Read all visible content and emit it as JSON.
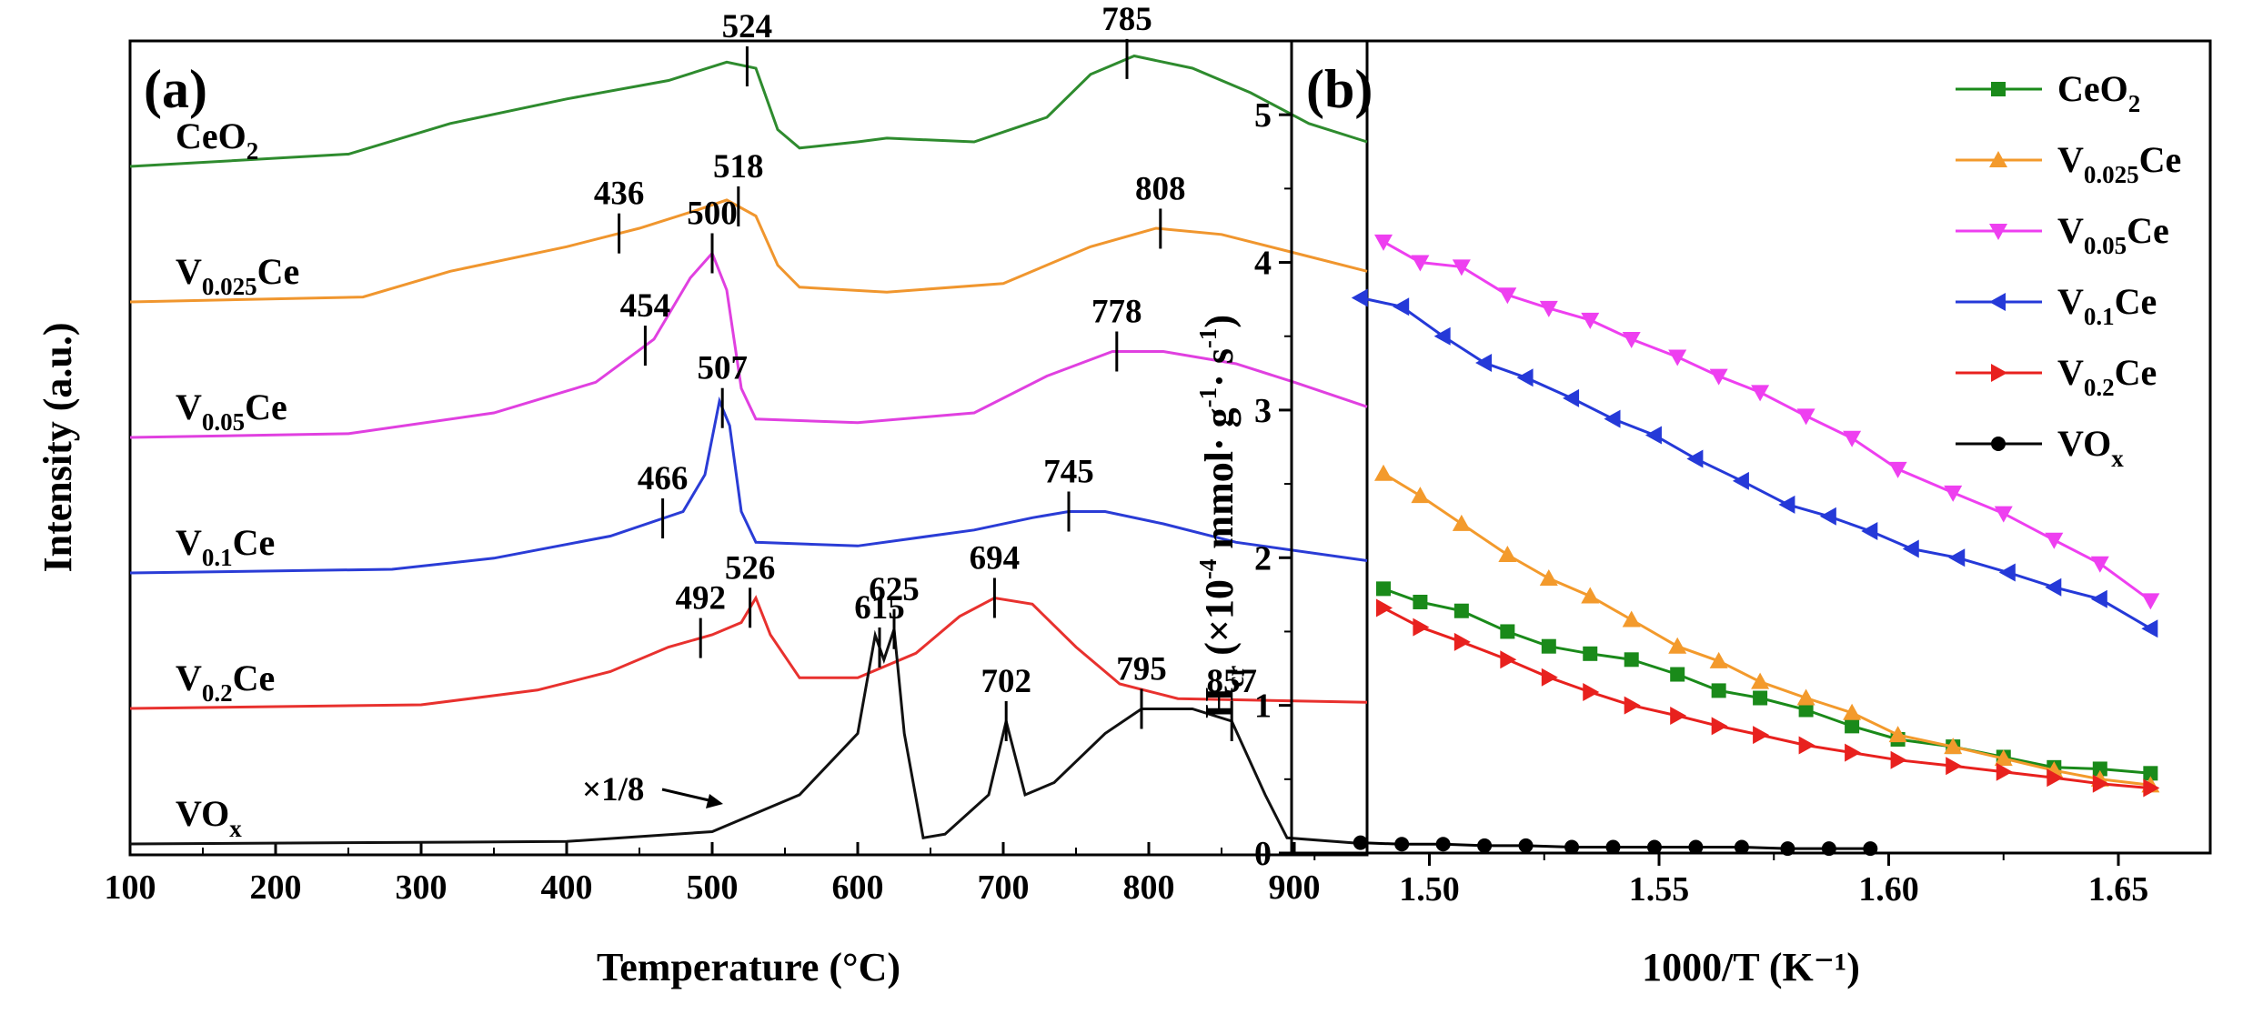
{
  "chart_data": [
    {
      "type": "line",
      "panel_label": "(a)",
      "xlabel": "Temperature (°C)",
      "ylabel": "Intensity (a.u.)",
      "xlim": [
        100,
        950
      ],
      "xticks": [
        "100",
        "200",
        "300",
        "400",
        "500",
        "600",
        "700",
        "800",
        "900"
      ],
      "annotation": "×1/8",
      "series": [
        {
          "name": "CeO2",
          "label_main": "CeO",
          "label_sub": "2",
          "label_after": "",
          "color": "#2e8b2e",
          "offset": 10,
          "scale": 1,
          "points": [
            [
              100,
              0
            ],
            [
              250,
              1
            ],
            [
              320,
              3.5
            ],
            [
              400,
              5.5
            ],
            [
              470,
              7
            ],
            [
              510,
              8.5
            ],
            [
              530,
              8
            ],
            [
              545,
              3
            ],
            [
              560,
              1.5
            ],
            [
              600,
              2
            ],
            [
              620,
              2.3
            ],
            [
              680,
              2
            ],
            [
              730,
              4
            ],
            [
              760,
              7.5
            ],
            [
              790,
              9
            ],
            [
              830,
              8
            ],
            [
              870,
              6
            ],
            [
              910,
              3.5
            ],
            [
              950,
              2
            ]
          ],
          "peaks": [
            "524",
            "785"
          ],
          "peak_x": [
            524,
            785
          ]
        },
        {
          "name": "V0.025Ce",
          "label_main": "V",
          "label_sub": "0.025",
          "label_after": "Ce",
          "color": "#f0962e",
          "offset": 8,
          "scale": 1,
          "points": [
            [
              100,
              0
            ],
            [
              260,
              0.4
            ],
            [
              320,
              2.5
            ],
            [
              400,
              4.5
            ],
            [
              450,
              6
            ],
            [
              490,
              7.5
            ],
            [
              510,
              8.3
            ],
            [
              530,
              7
            ],
            [
              545,
              3
            ],
            [
              560,
              1.2
            ],
            [
              620,
              0.8
            ],
            [
              700,
              1.5
            ],
            [
              760,
              4.5
            ],
            [
              805,
              6
            ],
            [
              850,
              5.5
            ],
            [
              900,
              4
            ],
            [
              950,
              2.5
            ]
          ],
          "peaks": [
            "436",
            "518",
            "808"
          ],
          "peak_x": [
            436,
            518,
            808
          ]
        },
        {
          "name": "V0.05Ce",
          "label_main": "V",
          "label_sub": "0.05",
          "label_after": "Ce",
          "color": "#e040e0",
          "offset": 6,
          "scale": 1,
          "points": [
            [
              100,
              0
            ],
            [
              250,
              0.3
            ],
            [
              350,
              2
            ],
            [
              420,
              4.5
            ],
            [
              460,
              8
            ],
            [
              485,
              13
            ],
            [
              500,
              15
            ],
            [
              510,
              12
            ],
            [
              520,
              4
            ],
            [
              530,
              1.5
            ],
            [
              600,
              1.2
            ],
            [
              680,
              2
            ],
            [
              730,
              5
            ],
            [
              775,
              7
            ],
            [
              810,
              7
            ],
            [
              860,
              6
            ],
            [
              900,
              4.5
            ],
            [
              950,
              2.5
            ]
          ],
          "peaks": [
            "454",
            "500",
            "778"
          ],
          "peak_x": [
            454,
            500,
            778
          ]
        },
        {
          "name": "V0.1Ce",
          "label_main": "V",
          "label_sub": "0.1",
          "label_after": "Ce",
          "color": "#2a3cd6",
          "offset": 4,
          "scale": 1,
          "points": [
            [
              100,
              0
            ],
            [
              280,
              0.3
            ],
            [
              350,
              1.2
            ],
            [
              430,
              3
            ],
            [
              480,
              5
            ],
            [
              495,
              8
            ],
            [
              505,
              14
            ],
            [
              512,
              12
            ],
            [
              520,
              5
            ],
            [
              530,
              2.5
            ],
            [
              600,
              2.2
            ],
            [
              680,
              3.5
            ],
            [
              720,
              4.5
            ],
            [
              745,
              5
            ],
            [
              770,
              5
            ],
            [
              810,
              4
            ],
            [
              860,
              2.5
            ],
            [
              950,
              1
            ]
          ],
          "peaks": [
            "466",
            "507",
            "745"
          ],
          "peak_x": [
            466,
            507,
            745
          ]
        },
        {
          "name": "V0.2Ce",
          "label_main": "V",
          "label_sub": "0.2",
          "label_after": "Ce",
          "color": "#e8312e",
          "offset": 2,
          "scale": 1,
          "points": [
            [
              100,
              0
            ],
            [
              300,
              0.3
            ],
            [
              380,
              1.5
            ],
            [
              430,
              3
            ],
            [
              470,
              5
            ],
            [
              500,
              6
            ],
            [
              520,
              7
            ],
            [
              530,
              9
            ],
            [
              540,
              6
            ],
            [
              560,
              2.5
            ],
            [
              600,
              2.5
            ],
            [
              640,
              4.5
            ],
            [
              670,
              7.5
            ],
            [
              694,
              9
            ],
            [
              720,
              8.5
            ],
            [
              750,
              5
            ],
            [
              780,
              2
            ],
            [
              820,
              0.8
            ],
            [
              950,
              0.5
            ]
          ],
          "peaks": [
            "492",
            "526",
            "694"
          ],
          "peak_x": [
            492,
            526,
            694
          ]
        },
        {
          "name": "VOx",
          "label_main": "VO",
          "label_sub": "x",
          "label_after": "",
          "color": "#111111",
          "offset": 0,
          "scale": 1,
          "points": [
            [
              100,
              0
            ],
            [
              400,
              0.2
            ],
            [
              500,
              1
            ],
            [
              560,
              4
            ],
            [
              600,
              9
            ],
            [
              612,
              17
            ],
            [
              618,
              15
            ],
            [
              625,
              17.5
            ],
            [
              632,
              9
            ],
            [
              645,
              0.5
            ],
            [
              660,
              0.8
            ],
            [
              690,
              4
            ],
            [
              702,
              10
            ],
            [
              715,
              4
            ],
            [
              735,
              5
            ],
            [
              770,
              9
            ],
            [
              795,
              11
            ],
            [
              830,
              11
            ],
            [
              857,
              10
            ],
            [
              880,
              4
            ],
            [
              895,
              0.5
            ],
            [
              950,
              0
            ]
          ],
          "peaks": [
            "615",
            "625",
            "702",
            "795",
            "857"
          ],
          "peak_x": [
            615,
            625,
            702,
            795,
            857
          ]
        }
      ]
    },
    {
      "type": "line",
      "panel_label": "(b)",
      "xlabel": "1000/T (K⁻¹)",
      "ylabel_main": "H",
      "ylabel_sub": "cr",
      "ylabel_rest": "(×10",
      "ylabel_sup1": "-4",
      "ylabel_mid": "mmol· g",
      "ylabel_sup2": "-1",
      "ylabel_mid2": "· s",
      "ylabel_sup3": "-1",
      "ylabel_end": ")",
      "xlim": [
        1.47,
        1.67
      ],
      "ylim": [
        0,
        5.5
      ],
      "xticks": [
        "1.50",
        "1.55",
        "1.60",
        "1.65"
      ],
      "yticks": [
        "0",
        "1",
        "2",
        "3",
        "4",
        "5"
      ],
      "legend_position": "top-right",
      "series": [
        {
          "name": "CeO2",
          "label_main": "CeO",
          "label_sub": "2",
          "label_after": "",
          "color": "#1a8a1a",
          "marker": "square",
          "x": [
            1.49,
            1.498,
            1.507,
            1.517,
            1.526,
            1.535,
            1.544,
            1.554,
            1.563,
            1.572,
            1.582,
            1.592,
            1.602,
            1.614,
            1.625,
            1.636,
            1.646,
            1.657
          ],
          "y": [
            1.79,
            1.7,
            1.64,
            1.5,
            1.4,
            1.35,
            1.31,
            1.21,
            1.1,
            1.05,
            0.97,
            0.86,
            0.77,
            0.72,
            0.65,
            0.58,
            0.57,
            0.54
          ]
        },
        {
          "name": "V0.025Ce",
          "label_main": "V",
          "label_sub": "0.025",
          "label_after": "Ce",
          "color": "#f39a2c",
          "marker": "triangle-up",
          "x": [
            1.49,
            1.498,
            1.507,
            1.517,
            1.526,
            1.535,
            1.544,
            1.554,
            1.563,
            1.572,
            1.582,
            1.592,
            1.602,
            1.614,
            1.625,
            1.636,
            1.646,
            1.657
          ],
          "y": [
            2.57,
            2.42,
            2.23,
            2.02,
            1.86,
            1.74,
            1.58,
            1.4,
            1.3,
            1.16,
            1.05,
            0.95,
            0.8,
            0.72,
            0.64,
            0.56,
            0.5,
            0.46
          ]
        },
        {
          "name": "V0.05Ce",
          "label_main": "V",
          "label_sub": "0.05",
          "label_after": "Ce",
          "color": "#ee3ff0",
          "marker": "triangle-down",
          "x": [
            1.49,
            1.498,
            1.507,
            1.517,
            1.526,
            1.535,
            1.544,
            1.554,
            1.563,
            1.572,
            1.582,
            1.592,
            1.602,
            1.614,
            1.625,
            1.636,
            1.646,
            1.657
          ],
          "y": [
            4.14,
            4.0,
            3.97,
            3.78,
            3.69,
            3.61,
            3.48,
            3.36,
            3.23,
            3.12,
            2.96,
            2.81,
            2.6,
            2.44,
            2.3,
            2.12,
            1.96,
            1.71
          ]
        },
        {
          "name": "V0.1Ce",
          "label_main": "V",
          "label_sub": "0.1",
          "label_after": "Ce",
          "color": "#2539d8",
          "marker": "triangle-left",
          "x": [
            1.485,
            1.494,
            1.503,
            1.512,
            1.521,
            1.531,
            1.54,
            1.549,
            1.558,
            1.568,
            1.578,
            1.587,
            1.596,
            1.605,
            1.615,
            1.626,
            1.636,
            1.646,
            1.657
          ],
          "y": [
            3.76,
            3.7,
            3.5,
            3.32,
            3.22,
            3.08,
            2.94,
            2.83,
            2.67,
            2.52,
            2.36,
            2.28,
            2.18,
            2.06,
            2.0,
            1.9,
            1.8,
            1.72,
            1.52
          ]
        },
        {
          "name": "V0.2Ce",
          "label_main": "V",
          "label_sub": "0.2",
          "label_after": "Ce",
          "color": "#e8211e",
          "marker": "triangle-right",
          "x": [
            1.49,
            1.498,
            1.507,
            1.517,
            1.526,
            1.535,
            1.544,
            1.554,
            1.563,
            1.572,
            1.582,
            1.592,
            1.602,
            1.614,
            1.625,
            1.636,
            1.646,
            1.657
          ],
          "y": [
            1.66,
            1.53,
            1.43,
            1.31,
            1.19,
            1.09,
            1.0,
            0.93,
            0.86,
            0.8,
            0.73,
            0.68,
            0.63,
            0.59,
            0.55,
            0.51,
            0.47,
            0.44
          ]
        },
        {
          "name": "VOx",
          "label_main": "VO",
          "label_sub": "x",
          "label_after": "",
          "color": "#000000",
          "marker": "circle",
          "x": [
            1.485,
            1.494,
            1.503,
            1.512,
            1.521,
            1.531,
            1.54,
            1.549,
            1.558,
            1.568,
            1.578,
            1.587,
            1.596
          ],
          "y": [
            0.07,
            0.06,
            0.06,
            0.05,
            0.05,
            0.04,
            0.04,
            0.04,
            0.04,
            0.04,
            0.03,
            0.03,
            0.03
          ]
        }
      ]
    }
  ]
}
